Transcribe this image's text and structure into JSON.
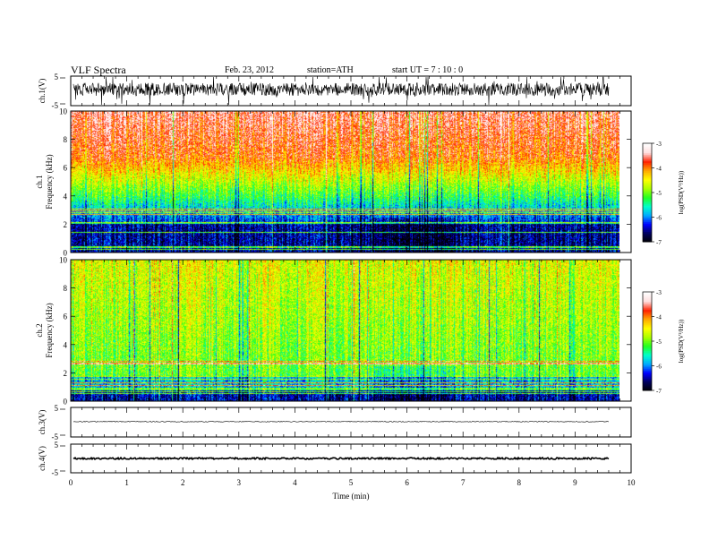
{
  "header": {
    "title": "VLF  Spectra",
    "date": "Feb. 23, 2012",
    "station": "station=ATH",
    "start": "start  UT  =    7  : 10 : 0"
  },
  "chart_data": {
    "type": "heatmap",
    "xlabel": "Time  (min)",
    "xlim": [
      0,
      10
    ],
    "xticks": [
      0,
      1,
      2,
      3,
      4,
      5,
      6,
      7,
      8,
      9,
      10
    ],
    "data_end_min": 9.8,
    "panels": [
      {
        "id": "ch1_waveform",
        "type": "line",
        "ylabel": "ch.1(V)",
        "ylim": [
          -5,
          5
        ],
        "ytick_labels": [
          "5",
          "-5"
        ],
        "baseline": 0.5,
        "noise_amplitude": 2.2
      },
      {
        "id": "ch1_spectrogram",
        "type": "heatmap",
        "ylabel_channel": "ch.1",
        "ylabel": "Frequency  (kHz)",
        "ylim": [
          0,
          10
        ],
        "yticks": [
          "0",
          "2",
          "4",
          "6",
          "8",
          "10"
        ],
        "pattern_profile": "strong high-frequency power (red) above ~7 kHz, green band 4-6 kHz, dark blue below ~3 kHz",
        "colorbar_label": "log(PSD(V²/Hz))",
        "clim": [
          -7,
          -3
        ],
        "colorbar_ticks": [
          "-3",
          "-4",
          "-5",
          "-6",
          "-7"
        ]
      },
      {
        "id": "ch2_spectrogram",
        "type": "heatmap",
        "ylabel_channel": "ch.2",
        "ylabel": "Frequency  (kHz)",
        "ylim": [
          0,
          10
        ],
        "yticks": [
          "0",
          "2",
          "4",
          "6",
          "8",
          "10"
        ],
        "pattern_profile": "mostly green/cyan across band with sporadic red pixels, dark blue below ~2 kHz",
        "colorbar_label": "log(PSD(V²/Hz))",
        "clim": [
          -7,
          -3
        ],
        "colorbar_ticks": [
          "-3",
          "-4",
          "-5",
          "-6",
          "-7"
        ]
      },
      {
        "id": "ch3_waveform",
        "type": "line",
        "ylabel": "ch.3(V)",
        "ylim": [
          -5,
          5
        ],
        "ytick_labels": [
          "5",
          "-5"
        ],
        "baseline": 0.2,
        "noise_amplitude": 0.15
      },
      {
        "id": "ch4_waveform",
        "type": "line",
        "ylabel": "ch.4(V)",
        "ylim": [
          -5,
          5
        ],
        "ytick_labels": [
          "5",
          "-5"
        ],
        "baseline": 0.0,
        "noise_amplitude": 0.3
      }
    ],
    "colormap": [
      "#000000",
      "#00005a",
      "#0000ff",
      "#00aaff",
      "#00ffcc",
      "#22ff22",
      "#aaff00",
      "#ffff00",
      "#ffaa00",
      "#ff2200",
      "#ffdddd",
      "#ffffff"
    ]
  }
}
